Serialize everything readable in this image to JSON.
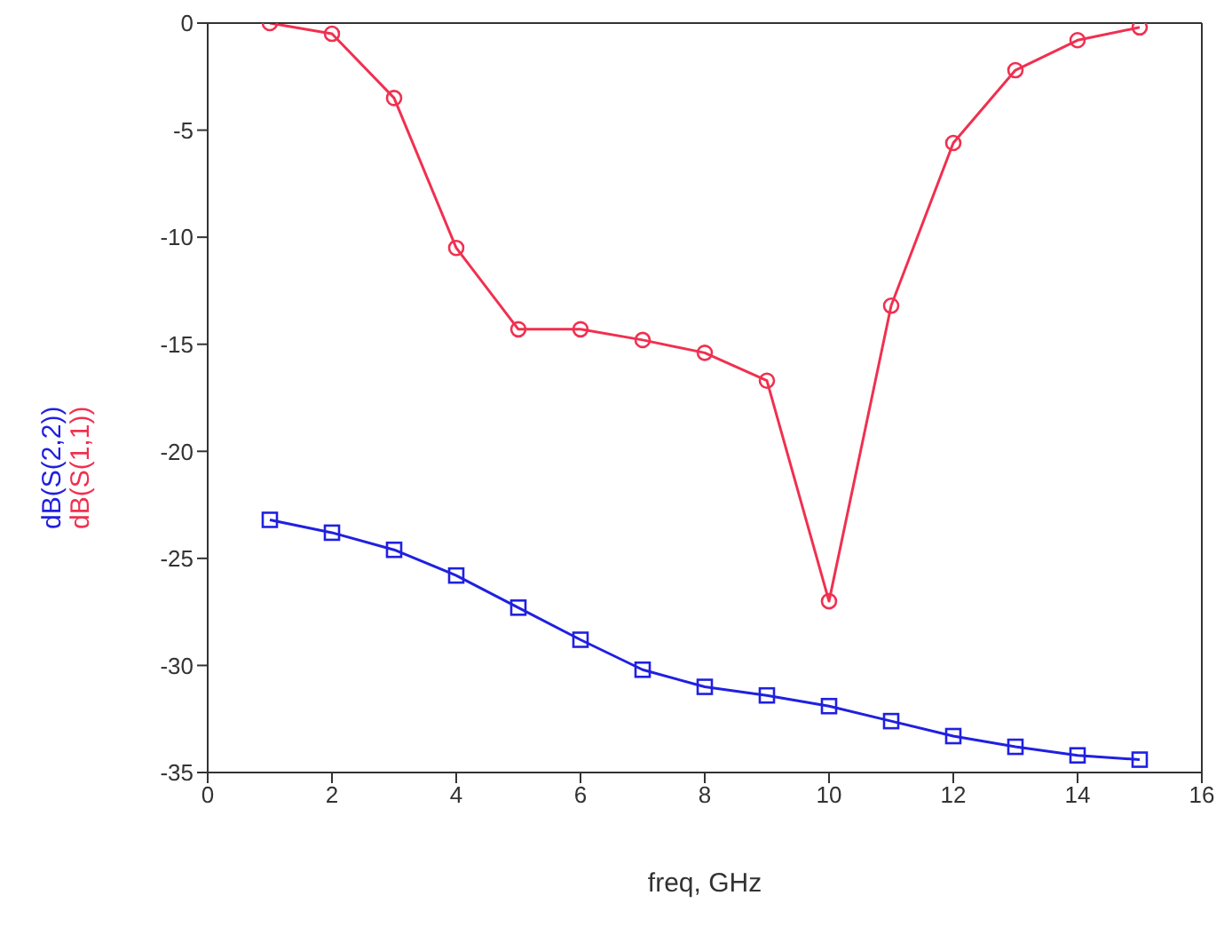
{
  "chart_data": {
    "type": "line",
    "xlabel": "freq, GHz",
    "x": [
      1,
      2,
      3,
      4,
      5,
      6,
      7,
      8,
      9,
      10,
      11,
      12,
      13,
      14,
      15
    ],
    "xlim": [
      0,
      16
    ],
    "xticks": [
      0,
      2,
      4,
      6,
      8,
      10,
      12,
      14,
      16
    ],
    "ylim": [
      -35,
      0
    ],
    "yticks": [
      -35,
      -30,
      -25,
      -20,
      -15,
      -10,
      -5,
      0
    ],
    "grid": false,
    "legend": "left",
    "series": [
      {
        "name": "dB(S(2,2))",
        "color": "#2020e0",
        "marker": "square",
        "values": [
          -23.2,
          -23.8,
          -24.6,
          -25.8,
          -27.3,
          -28.8,
          -30.2,
          -31,
          -31.4,
          -31.9,
          -32.6,
          -33.3,
          -33.8,
          -34.2,
          -34.4
        ]
      },
      {
        "name": "dB(S(1,1))",
        "color": "#f03050",
        "marker": "circle",
        "values": [
          0,
          -0.5,
          -3.5,
          -10.5,
          -14.3,
          -14.3,
          -14.8,
          -15.4,
          -16.7,
          -27,
          -13.2,
          -5.6,
          -2.2,
          -0.8,
          -0.2
        ]
      }
    ]
  }
}
